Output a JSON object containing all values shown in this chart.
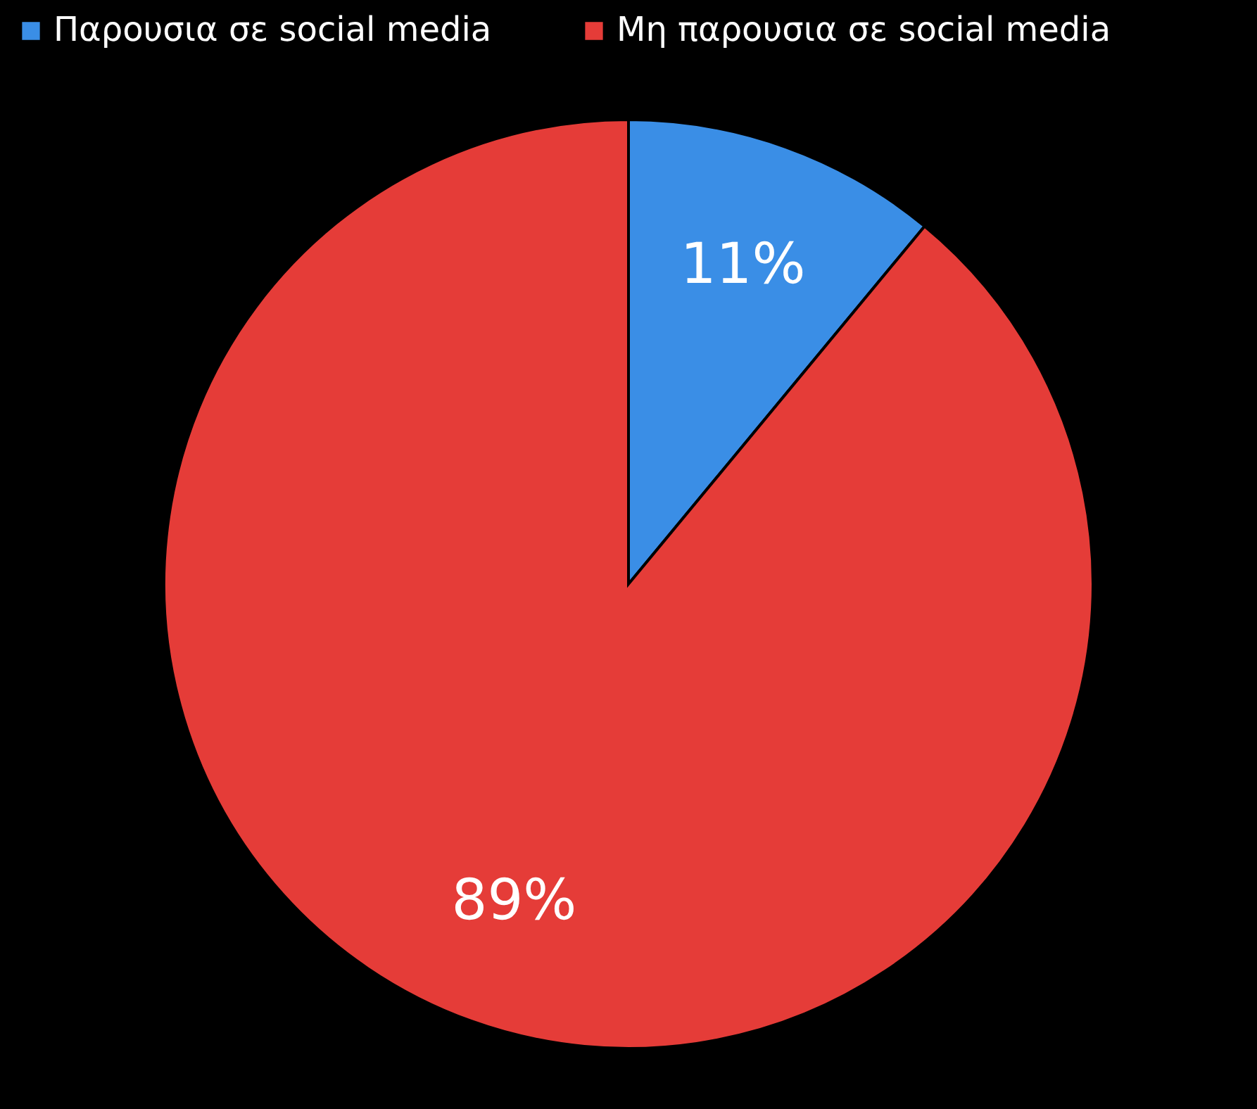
{
  "chart_data": {
    "type": "pie",
    "categories": [
      "Παρουσια σε social media",
      "Μη παρουσια σε social media"
    ],
    "values": [
      11,
      89
    ],
    "colors": [
      "#3a8ee6",
      "#e53c38"
    ],
    "value_labels": [
      "11%",
      "89%"
    ],
    "legend": "top"
  }
}
